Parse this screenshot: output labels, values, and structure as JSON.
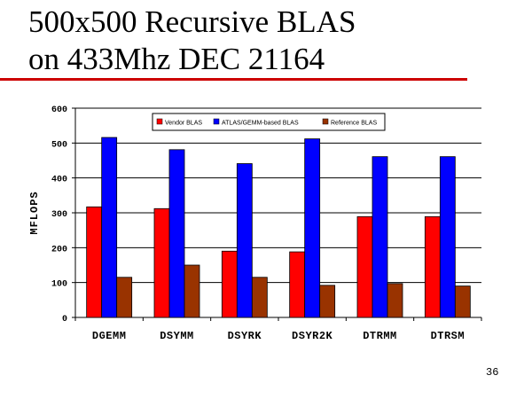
{
  "slide": {
    "title_line1": "500x500 Recursive BLAS",
    "title_line2": "on 433Mhz DEC 21164",
    "page_number": "36"
  },
  "colors": {
    "title_rule": "#cc0000",
    "plot_background": "#ffffff",
    "gridline": "#000000"
  },
  "chart_data": {
    "type": "bar",
    "categories": [
      "DGEMM",
      "DSYMM",
      "DSYRK",
      "DSYR2K",
      "DTRMM",
      "DTRSM"
    ],
    "series": [
      {
        "name": "Vendor BLAS",
        "color": "#ff0000",
        "values": [
          317,
          312,
          190,
          188,
          289,
          289
        ]
      },
      {
        "name": "ATLAS/GEMM-based BLAS",
        "color": "#0000ff",
        "values": [
          516,
          481,
          441,
          512,
          461,
          461
        ]
      },
      {
        "name": "Reference BLAS",
        "color": "#993300",
        "values": [
          115,
          150,
          115,
          92,
          97,
          90
        ]
      }
    ],
    "title": "",
    "xlabel": "",
    "ylabel": "MFLOPS",
    "ylim": [
      0,
      600
    ],
    "yticks": [
      0,
      100,
      200,
      300,
      400,
      500,
      600
    ],
    "grid": "horizontal",
    "legend_position": "top-center"
  }
}
